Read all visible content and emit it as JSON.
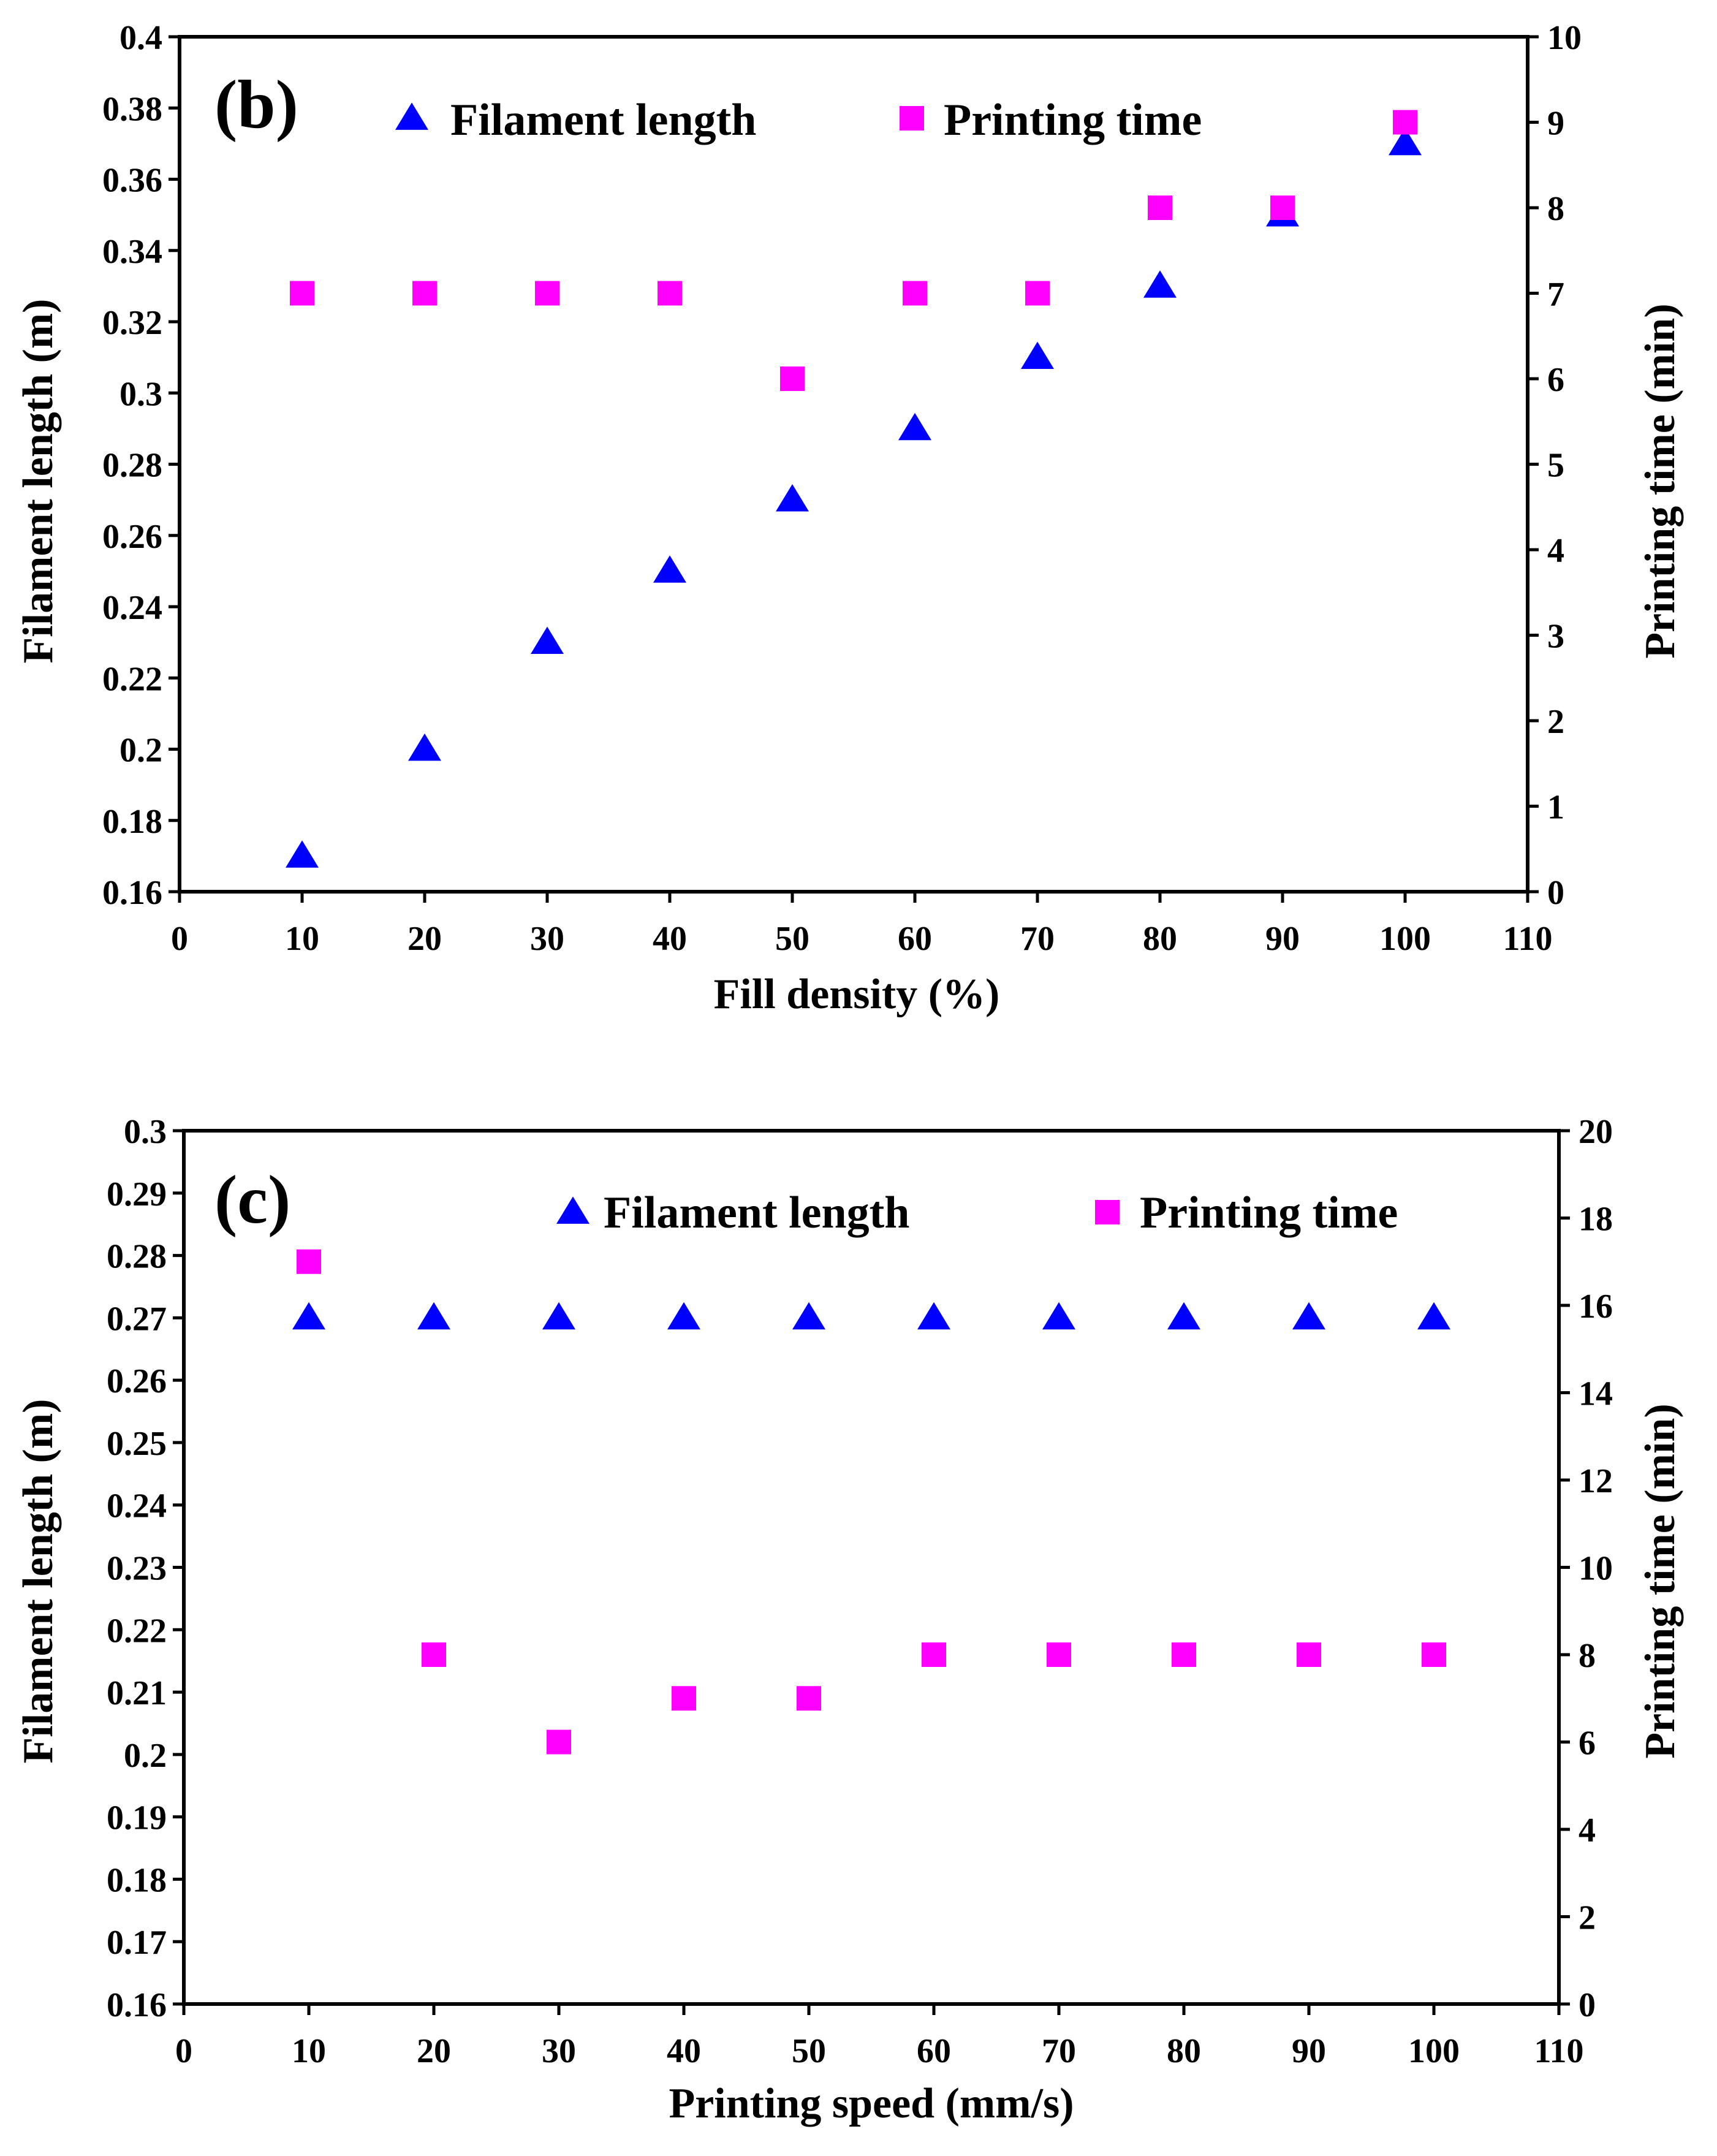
{
  "colors": {
    "filament": "#0000FF",
    "printing": "#FF00FF",
    "legend_text": "#FF0000",
    "panel_label": "#0000FF",
    "axis": "#000000",
    "background": "#FFFFFF"
  },
  "chart_data": [
    {
      "type": "scatter",
      "panel_label": "(b)",
      "xlabel": "Fill density (%)",
      "ylabel_left": "Filament length (m)",
      "ylabel_right": "Printing time (min)",
      "xlim": [
        0,
        110
      ],
      "x_ticks": [
        0,
        10,
        20,
        30,
        40,
        50,
        60,
        70,
        80,
        90,
        100,
        110
      ],
      "ylim_left": [
        0.16,
        0.4
      ],
      "y_ticks_left": [
        0.16,
        0.18,
        0.2,
        0.22,
        0.24,
        0.26,
        0.28,
        0.3,
        0.32,
        0.34,
        0.36,
        0.38,
        0.4
      ],
      "y_tick_labels_left": [
        "0.16",
        "0.18",
        "0.2",
        "0.22",
        "0.24",
        "0.26",
        "0.28",
        "0.3",
        "0.32",
        "0.34",
        "0.36",
        "0.38",
        "0.4"
      ],
      "ylim_right": [
        0,
        10
      ],
      "y_ticks_right": [
        0,
        1,
        2,
        3,
        4,
        5,
        6,
        7,
        8,
        9,
        10
      ],
      "legend": {
        "placement": "top",
        "entries": [
          "Filament length",
          "Printing time"
        ]
      },
      "series": [
        {
          "name": "Filament length",
          "axis": "left",
          "marker": "triangle",
          "x": [
            10,
            20,
            30,
            40,
            50,
            60,
            70,
            80,
            90,
            100
          ],
          "values": [
            0.17,
            0.2,
            0.23,
            0.25,
            0.27,
            0.29,
            0.31,
            0.33,
            0.35,
            0.37
          ]
        },
        {
          "name": "Printing time",
          "axis": "right",
          "marker": "square",
          "x": [
            10,
            20,
            30,
            40,
            50,
            60,
            70,
            80,
            90,
            100
          ],
          "values": [
            7,
            7,
            7,
            7,
            6,
            7,
            7,
            8,
            8,
            9
          ]
        }
      ]
    },
    {
      "type": "scatter",
      "panel_label": "(c)",
      "xlabel": "Printing speed (mm/s)",
      "ylabel_left": "Filament length (m)",
      "ylabel_right": "Printing time (min)",
      "xlim": [
        0,
        110
      ],
      "x_ticks": [
        0,
        10,
        20,
        30,
        40,
        50,
        60,
        70,
        80,
        90,
        100,
        110
      ],
      "ylim_left": [
        0.16,
        0.3
      ],
      "y_ticks_left": [
        0.16,
        0.17,
        0.18,
        0.19,
        0.2,
        0.21,
        0.22,
        0.23,
        0.24,
        0.25,
        0.26,
        0.27,
        0.28,
        0.29,
        0.3
      ],
      "y_tick_labels_left": [
        "0.16",
        "0.17",
        "0.18",
        "0.19",
        "0.2",
        "0.21",
        "0.22",
        "0.23",
        "0.24",
        "0.25",
        "0.26",
        "0.27",
        "0.28",
        "0.29",
        "0.3"
      ],
      "ylim_right": [
        0,
        20
      ],
      "y_ticks_right": [
        0,
        2,
        4,
        6,
        8,
        10,
        12,
        14,
        16,
        18,
        20
      ],
      "legend": {
        "placement": "top",
        "entries": [
          "Filament length",
          "Printing time"
        ]
      },
      "series": [
        {
          "name": "Filament length",
          "axis": "left",
          "marker": "triangle",
          "x": [
            10,
            20,
            30,
            40,
            50,
            60,
            70,
            80,
            90,
            100
          ],
          "values": [
            0.27,
            0.27,
            0.27,
            0.27,
            0.27,
            0.27,
            0.27,
            0.27,
            0.27,
            0.27
          ]
        },
        {
          "name": "Printing time",
          "axis": "right",
          "marker": "square",
          "x": [
            10,
            20,
            30,
            40,
            50,
            60,
            70,
            80,
            90,
            100
          ],
          "values": [
            17,
            8,
            6,
            7,
            7,
            8,
            8,
            8,
            8,
            8
          ]
        }
      ]
    }
  ]
}
